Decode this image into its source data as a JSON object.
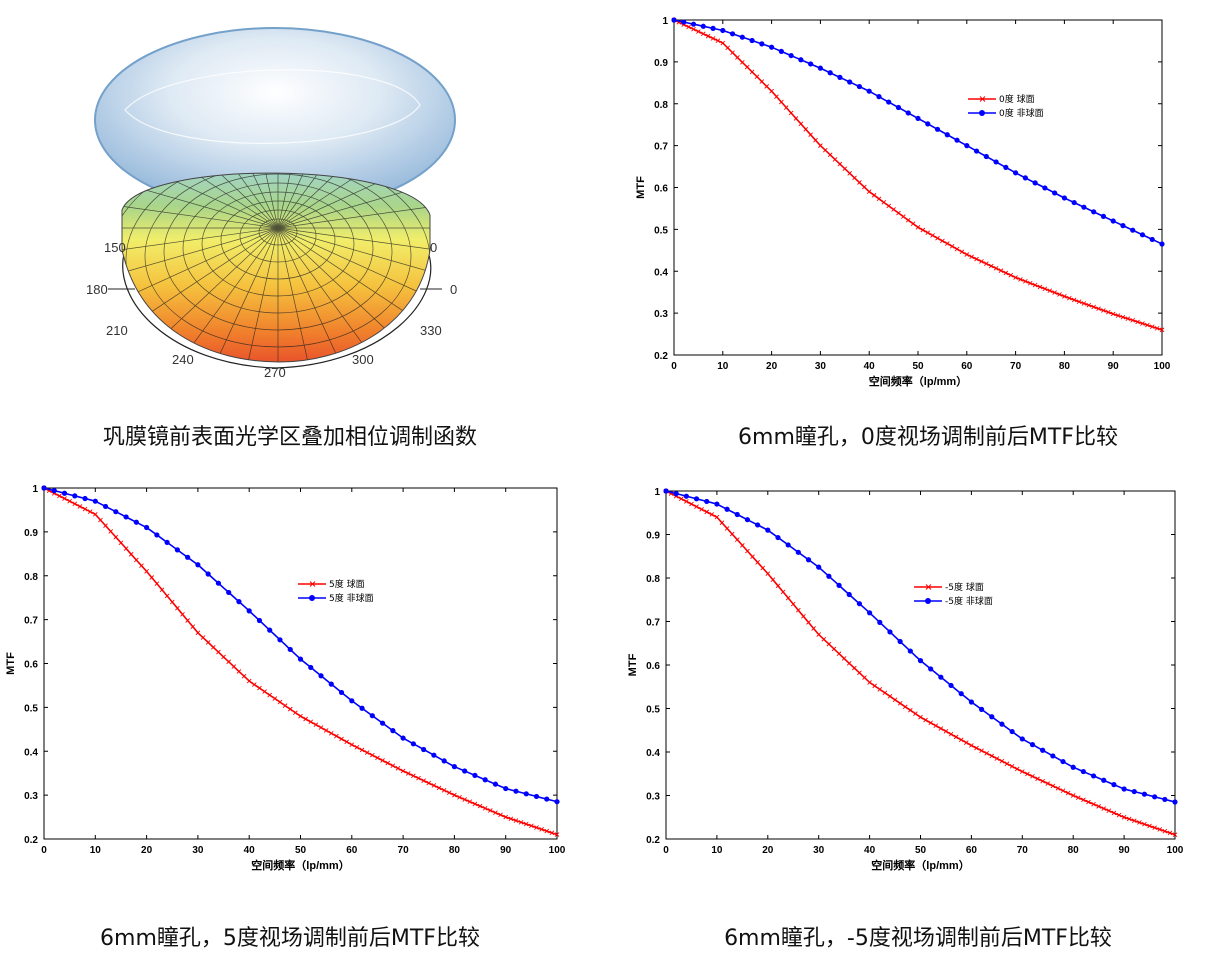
{
  "lens_figure": {
    "caption": "巩膜镜前表面光学区叠加相位调制函数",
    "angle_labels": [
      "150",
      "0",
      "180",
      "0",
      "210",
      "330",
      "240",
      "300",
      "270"
    ]
  },
  "colors": {
    "spherical": "#ff0000",
    "aspheric": "#0000ff"
  },
  "chart_data": [
    {
      "type": "line",
      "caption": "6mm瞳孔，0度视场调制前后MTF比较",
      "xlabel": "空间频率（lp/mm）",
      "ylabel": "MTF",
      "xlim": [
        0,
        100
      ],
      "ylim": [
        0.2,
        1
      ],
      "xticks": [
        "0",
        "10",
        "20",
        "30",
        "40",
        "50",
        "60",
        "70",
        "80",
        "90",
        "100"
      ],
      "yticks": [
        "0.2",
        "0.3",
        "0.4",
        "0.5",
        "0.6",
        "0.7",
        "0.8",
        "0.9",
        "1"
      ],
      "grid": false,
      "legend": "upper-right",
      "x": [
        0,
        10,
        20,
        30,
        40,
        50,
        60,
        70,
        80,
        90,
        100
      ],
      "series": [
        {
          "name": "0度 球面",
          "marker": "x",
          "values": [
            1.0,
            0.945,
            0.83,
            0.7,
            0.59,
            0.505,
            0.44,
            0.385,
            0.34,
            0.298,
            0.26
          ]
        },
        {
          "name": "0度 非球面",
          "marker": "o",
          "values": [
            1.0,
            0.975,
            0.935,
            0.885,
            0.83,
            0.765,
            0.7,
            0.635,
            0.575,
            0.52,
            0.465
          ]
        }
      ]
    },
    {
      "type": "line",
      "caption": "6mm瞳孔，5度视场调制前后MTF比较",
      "xlabel": "空间频率（lp/mm）",
      "ylabel": "MTF",
      "xlim": [
        0,
        100
      ],
      "ylim": [
        0.2,
        1
      ],
      "xticks": [
        "0",
        "10",
        "20",
        "30",
        "40",
        "50",
        "60",
        "70",
        "80",
        "90",
        "100"
      ],
      "yticks": [
        "0.2",
        "0.3",
        "0.4",
        "0.5",
        "0.6",
        "0.7",
        "0.8",
        "0.9",
        "1"
      ],
      "grid": false,
      "legend": "upper-center",
      "x": [
        0,
        10,
        20,
        30,
        40,
        50,
        60,
        70,
        80,
        90,
        100
      ],
      "series": [
        {
          "name": "5度 球面",
          "marker": "x",
          "values": [
            1.0,
            0.94,
            0.81,
            0.67,
            0.56,
            0.48,
            0.415,
            0.355,
            0.3,
            0.25,
            0.21
          ]
        },
        {
          "name": "5度 非球面",
          "marker": "o",
          "values": [
            1.0,
            0.97,
            0.91,
            0.825,
            0.72,
            0.61,
            0.515,
            0.43,
            0.365,
            0.315,
            0.285
          ]
        }
      ]
    },
    {
      "type": "line",
      "caption": "6mm瞳孔，-5度视场调制前后MTF比较",
      "xlabel": "空间频率（lp/mm）",
      "ylabel": "MTF",
      "xlim": [
        0,
        100
      ],
      "ylim": [
        0.2,
        1
      ],
      "xticks": [
        "0",
        "10",
        "20",
        "30",
        "40",
        "50",
        "60",
        "70",
        "80",
        "90",
        "100"
      ],
      "yticks": [
        "0.2",
        "0.3",
        "0.4",
        "0.5",
        "0.6",
        "0.7",
        "0.8",
        "0.9",
        "1"
      ],
      "grid": false,
      "legend": "upper-center",
      "x": [
        0,
        10,
        20,
        30,
        40,
        50,
        60,
        70,
        80,
        90,
        100
      ],
      "series": [
        {
          "name": "-5度 球面",
          "marker": "x",
          "values": [
            1.0,
            0.94,
            0.81,
            0.67,
            0.56,
            0.48,
            0.415,
            0.355,
            0.3,
            0.25,
            0.21
          ]
        },
        {
          "name": "-5度 非球面",
          "marker": "o",
          "values": [
            1.0,
            0.97,
            0.91,
            0.825,
            0.72,
            0.61,
            0.515,
            0.43,
            0.365,
            0.315,
            0.285
          ]
        }
      ]
    }
  ]
}
